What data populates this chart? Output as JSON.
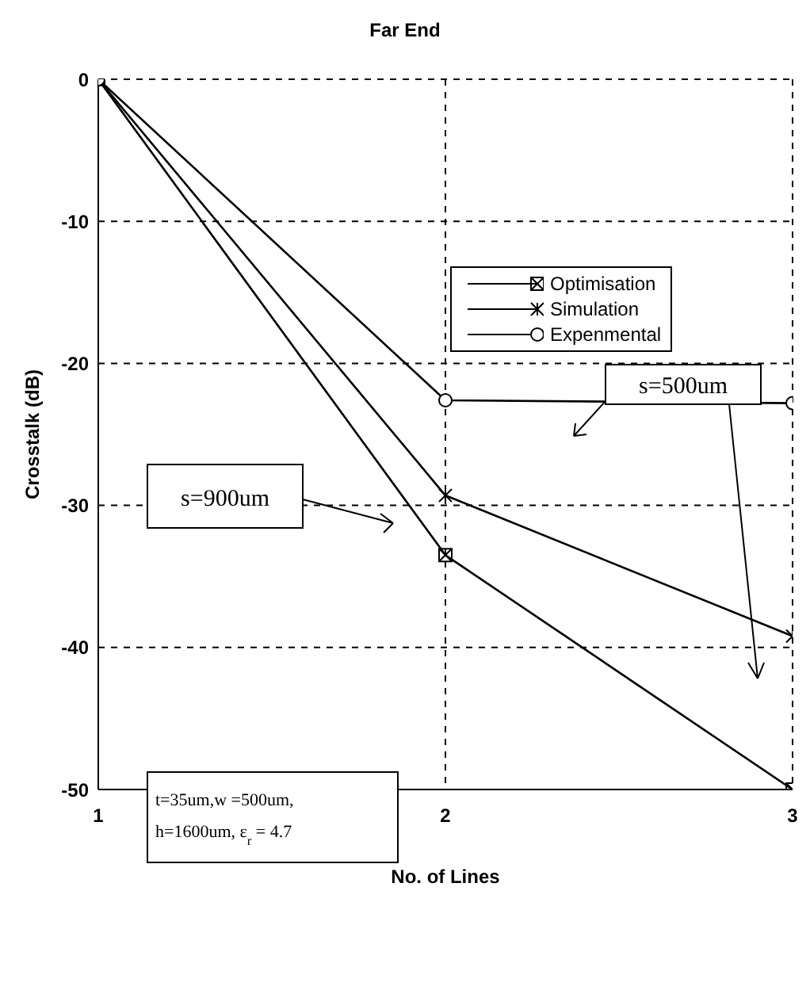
{
  "chart_data": {
    "type": "line",
    "title": "Far End",
    "xlabel": "No. of Lines",
    "ylabel": "Crosstalk (dB)",
    "x": [
      1,
      2,
      3
    ],
    "series": [
      {
        "name": "Optimisation",
        "color": "#000000",
        "marker": "square",
        "values": [
          0,
          -33.5,
          -50
        ]
      },
      {
        "name": "Simulation",
        "color": "#000000",
        "marker": "cross",
        "values": [
          0,
          -29.3,
          -39.2
        ]
      },
      {
        "name": "Expenmental",
        "color": "#000000",
        "marker": "circle",
        "values": [
          0,
          -22.6,
          -22.8
        ]
      }
    ],
    "xlim": [
      1,
      3
    ],
    "xticks": [
      1,
      2,
      3
    ],
    "ylim": [
      -50,
      0
    ],
    "yticks": [
      -50,
      -40,
      -30,
      -20,
      -10,
      0
    ],
    "grid": true,
    "line_style": "solid",
    "legend": "top right",
    "annotations": [
      "s=500um",
      "s=900um",
      "t=35um,w =500um,\nh=1600um, ε$_{r}$ = 4.7"
    ]
  }
}
